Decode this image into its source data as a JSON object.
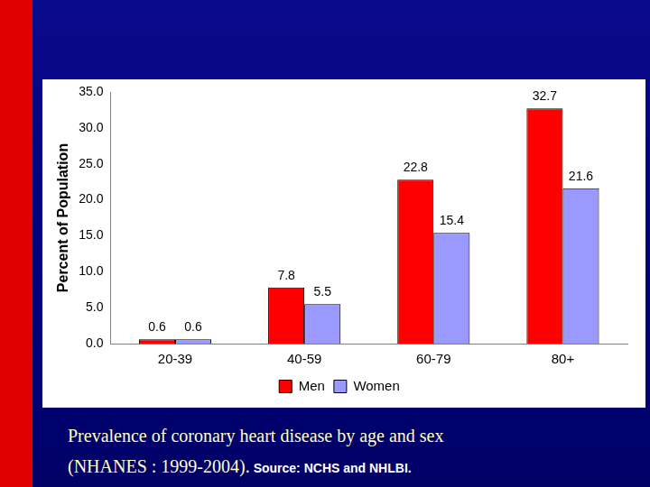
{
  "chart_data": {
    "type": "bar",
    "y_label": "Percent of Population",
    "categories": [
      "20-39",
      "40-59",
      "60-79",
      "80+"
    ],
    "series": [
      {
        "name": "Men",
        "color": "#ff0000",
        "values": [
          0.6,
          7.8,
          22.8,
          32.7
        ]
      },
      {
        "name": "Women",
        "color": "#9999ff",
        "values": [
          0.6,
          5.5,
          15.4,
          21.6
        ]
      }
    ],
    "ylim": [
      0,
      35
    ],
    "yticks": [
      {
        "value": 0,
        "label": "0.0"
      },
      {
        "value": 5,
        "label": "5.0"
      },
      {
        "value": 10,
        "label": "10.0"
      },
      {
        "value": 15,
        "label": "15.0"
      },
      {
        "value": 20,
        "label": "20.0"
      },
      {
        "value": 25,
        "label": "25.0"
      },
      {
        "value": 30,
        "label": "30.0"
      },
      {
        "value": 35,
        "label": "35.0"
      }
    ],
    "grid": false,
    "legend": "bottom",
    "data_labels": true
  },
  "caption": {
    "title": "Prevalence of coronary heart disease by age and sex",
    "note": "(NHANES : 1999-2004).",
    "source": "Source: NCHS and NHLBI."
  }
}
